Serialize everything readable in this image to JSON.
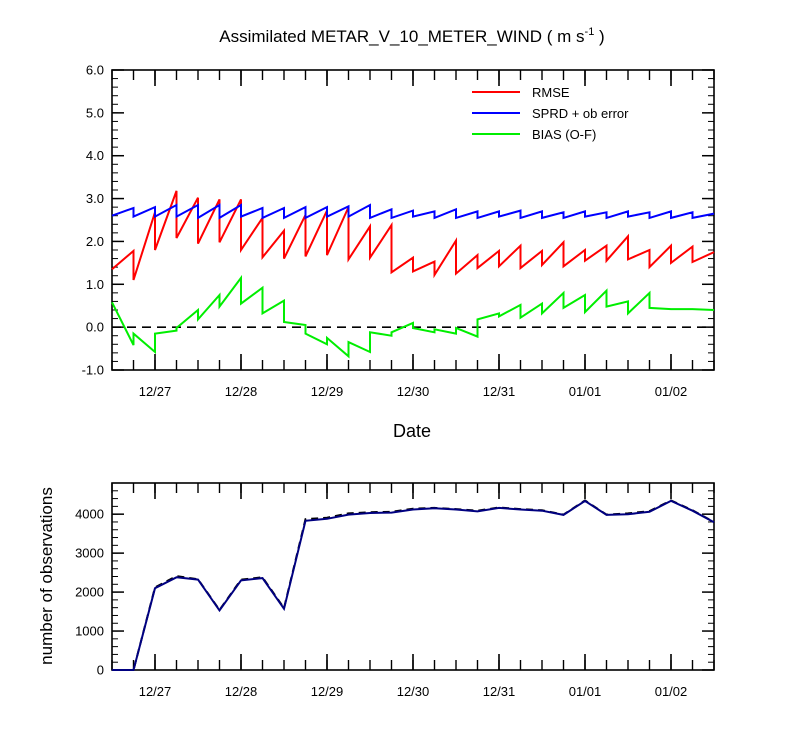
{
  "figure": {
    "title": "Assimilated METAR_V_10_METER_WIND ( m s",
    "title_superscript": "-1",
    "title_suffix": " )"
  },
  "chart_data": [
    {
      "type": "line",
      "xlabel": "Date",
      "ylabel": "",
      "ylim": [
        -1.0,
        6.0
      ],
      "yticks": [
        -1.0,
        0.0,
        1.0,
        2.0,
        3.0,
        4.0,
        5.0,
        6.0
      ],
      "ytick_labels": [
        "-1.0",
        "0.0",
        "1.0",
        "2.0",
        "3.0",
        "4.0",
        "5.0",
        "6.0"
      ],
      "xlim": [
        0,
        28
      ],
      "x_ticks": [
        2,
        6,
        10,
        14,
        18,
        22,
        26
      ],
      "x_tick_labels": [
        "12/27",
        "12/28",
        "12/29",
        "12/30",
        "12/31",
        "01/01",
        "01/02"
      ],
      "reference_line": {
        "y": 0.0,
        "style": "dashed"
      },
      "legend_position": "top-right",
      "series": [
        {
          "name": "RMSE",
          "color": "#ff0000",
          "points": [
            [
              0,
              1.35
            ],
            [
              1,
              1.78
            ],
            [
              1,
              1.1
            ],
            [
              2,
              2.68
            ],
            [
              2,
              1.8
            ],
            [
              3,
              3.18
            ],
            [
              3,
              2.08
            ],
            [
              4,
              3.02
            ],
            [
              4,
              1.95
            ],
            [
              5,
              2.98
            ],
            [
              5,
              1.98
            ],
            [
              6,
              2.98
            ],
            [
              6,
              1.8
            ],
            [
              7,
              2.55
            ],
            [
              7,
              1.63
            ],
            [
              8,
              2.25
            ],
            [
              8,
              1.6
            ],
            [
              9,
              2.62
            ],
            [
              9,
              1.65
            ],
            [
              10,
              2.72
            ],
            [
              10,
              1.68
            ],
            [
              11,
              2.8
            ],
            [
              11,
              1.58
            ],
            [
              12,
              2.35
            ],
            [
              12,
              1.62
            ],
            [
              13,
              2.38
            ],
            [
              13,
              1.28
            ],
            [
              14,
              1.62
            ],
            [
              14,
              1.3
            ],
            [
              15,
              1.53
            ],
            [
              15,
              1.22
            ],
            [
              16,
              2.02
            ],
            [
              16,
              1.25
            ],
            [
              17,
              1.68
            ],
            [
              17,
              1.38
            ],
            [
              18,
              1.78
            ],
            [
              18,
              1.42
            ],
            [
              19,
              1.9
            ],
            [
              19,
              1.38
            ],
            [
              20,
              1.78
            ],
            [
              20,
              1.45
            ],
            [
              21,
              1.98
            ],
            [
              21,
              1.42
            ],
            [
              22,
              1.8
            ],
            [
              22,
              1.55
            ],
            [
              23,
              1.9
            ],
            [
              23,
              1.55
            ],
            [
              24,
              2.12
            ],
            [
              24,
              1.58
            ],
            [
              25,
              1.8
            ],
            [
              25,
              1.4
            ],
            [
              26,
              1.9
            ],
            [
              26,
              1.5
            ],
            [
              27,
              1.88
            ],
            [
              27,
              1.52
            ],
            [
              28,
              1.75
            ]
          ]
        },
        {
          "name": "SPRD + ob error",
          "color": "#0000ff",
          "points": [
            [
              0,
              2.6
            ],
            [
              1,
              2.78
            ],
            [
              1,
              2.58
            ],
            [
              2,
              2.8
            ],
            [
              2,
              2.58
            ],
            [
              3,
              2.85
            ],
            [
              3,
              2.58
            ],
            [
              4,
              2.85
            ],
            [
              4,
              2.55
            ],
            [
              5,
              2.85
            ],
            [
              5,
              2.55
            ],
            [
              6,
              2.85
            ],
            [
              6,
              2.58
            ],
            [
              7,
              2.78
            ],
            [
              7,
              2.55
            ],
            [
              8,
              2.78
            ],
            [
              8,
              2.55
            ],
            [
              9,
              2.8
            ],
            [
              9,
              2.55
            ],
            [
              10,
              2.8
            ],
            [
              10,
              2.58
            ],
            [
              11,
              2.82
            ],
            [
              11,
              2.58
            ],
            [
              12,
              2.85
            ],
            [
              12,
              2.55
            ],
            [
              13,
              2.75
            ],
            [
              13,
              2.55
            ],
            [
              14,
              2.72
            ],
            [
              14,
              2.58
            ],
            [
              15,
              2.7
            ],
            [
              15,
              2.55
            ],
            [
              16,
              2.75
            ],
            [
              16,
              2.55
            ],
            [
              17,
              2.7
            ],
            [
              17,
              2.55
            ],
            [
              18,
              2.7
            ],
            [
              18,
              2.58
            ],
            [
              19,
              2.72
            ],
            [
              19,
              2.55
            ],
            [
              20,
              2.7
            ],
            [
              20,
              2.55
            ],
            [
              21,
              2.68
            ],
            [
              21,
              2.55
            ],
            [
              22,
              2.7
            ],
            [
              22,
              2.58
            ],
            [
              23,
              2.68
            ],
            [
              23,
              2.55
            ],
            [
              24,
              2.7
            ],
            [
              24,
              2.58
            ],
            [
              25,
              2.68
            ],
            [
              25,
              2.55
            ],
            [
              26,
              2.7
            ],
            [
              26,
              2.55
            ],
            [
              27,
              2.68
            ],
            [
              27,
              2.55
            ],
            [
              28,
              2.65
            ]
          ]
        },
        {
          "name": "BIAS (O-F)",
          "color": "#00ee00",
          "points": [
            [
              0,
              0.58
            ],
            [
              1,
              -0.42
            ],
            [
              1,
              -0.15
            ],
            [
              2,
              -0.58
            ],
            [
              2,
              -0.15
            ],
            [
              3,
              -0.08
            ],
            [
              3,
              -0.02
            ],
            [
              4,
              0.4
            ],
            [
              4,
              0.18
            ],
            [
              5,
              0.75
            ],
            [
              5,
              0.48
            ],
            [
              6,
              1.15
            ],
            [
              6,
              0.55
            ],
            [
              7,
              0.92
            ],
            [
              7,
              0.32
            ],
            [
              8,
              0.62
            ],
            [
              8,
              0.12
            ],
            [
              9,
              0.05
            ],
            [
              9,
              -0.15
            ],
            [
              10,
              -0.4
            ],
            [
              10,
              -0.25
            ],
            [
              11,
              -0.68
            ],
            [
              11,
              -0.35
            ],
            [
              12,
              -0.58
            ],
            [
              12,
              -0.12
            ],
            [
              13,
              -0.2
            ],
            [
              13,
              -0.12
            ],
            [
              14,
              0.1
            ],
            [
              14,
              -0.02
            ],
            [
              15,
              -0.12
            ],
            [
              15,
              -0.05
            ],
            [
              16,
              -0.15
            ],
            [
              16,
              -0.02
            ],
            [
              17,
              -0.22
            ],
            [
              17,
              0.18
            ],
            [
              18,
              0.32
            ],
            [
              18,
              0.25
            ],
            [
              19,
              0.52
            ],
            [
              19,
              0.22
            ],
            [
              20,
              0.55
            ],
            [
              20,
              0.32
            ],
            [
              21,
              0.8
            ],
            [
              21,
              0.45
            ],
            [
              22,
              0.75
            ],
            [
              22,
              0.35
            ],
            [
              23,
              0.85
            ],
            [
              23,
              0.48
            ],
            [
              24,
              0.6
            ],
            [
              24,
              0.32
            ],
            [
              25,
              0.8
            ],
            [
              25,
              0.45
            ],
            [
              26,
              0.42
            ],
            [
              26,
              0.42
            ],
            [
              27,
              0.42
            ],
            [
              27,
              0.42
            ],
            [
              28,
              0.4
            ]
          ]
        }
      ]
    },
    {
      "type": "line",
      "xlabel": "",
      "ylabel": "number of observations",
      "ylim": [
        0,
        4800
      ],
      "yticks": [
        0,
        1000,
        2000,
        3000,
        4000
      ],
      "ytick_labels": [
        "0",
        "1000",
        "2000",
        "3000",
        "4000"
      ],
      "xlim": [
        0,
        28
      ],
      "x_ticks": [
        2,
        6,
        10,
        14,
        18,
        22,
        26
      ],
      "x_tick_labels": [
        "12/27",
        "12/28",
        "12/29",
        "12/30",
        "12/31",
        "01/01",
        "01/02"
      ],
      "series": [
        {
          "color": "#000000",
          "style": "dashed",
          "x": [
            0,
            1,
            2,
            3,
            4,
            5,
            6,
            7,
            8,
            9,
            10,
            11,
            12,
            13,
            14,
            15,
            16,
            17,
            18,
            19,
            20,
            21,
            22,
            23,
            24,
            25,
            26,
            27,
            28
          ],
          "values": [
            0,
            0,
            2120,
            2410,
            2330,
            1540,
            2320,
            2380,
            1590,
            3870,
            3910,
            4020,
            4050,
            4060,
            4140,
            4160,
            4130,
            4090,
            4170,
            4130,
            4100,
            3990,
            4350,
            3990,
            4020,
            4080,
            4350,
            4100,
            3800
          ]
        },
        {
          "color": "#000080",
          "style": "solid",
          "x": [
            0,
            1,
            2,
            3,
            4,
            5,
            6,
            7,
            8,
            9,
            10,
            11,
            12,
            13,
            14,
            15,
            16,
            17,
            18,
            19,
            20,
            21,
            22,
            23,
            24,
            25,
            26,
            27,
            28
          ],
          "values": [
            0,
            0,
            2100,
            2380,
            2320,
            1530,
            2300,
            2360,
            1570,
            3830,
            3880,
            3990,
            4030,
            4040,
            4120,
            4150,
            4120,
            4070,
            4160,
            4120,
            4090,
            3980,
            4340,
            3980,
            4000,
            4060,
            4340,
            4090,
            3790
          ]
        }
      ]
    }
  ]
}
